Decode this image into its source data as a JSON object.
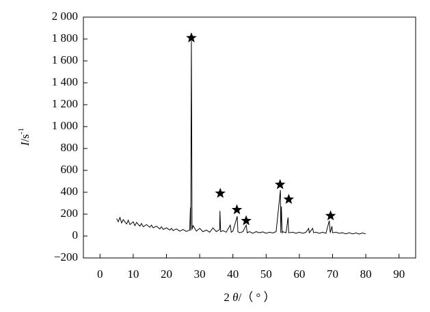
{
  "chart_data": {
    "type": "line",
    "x_label_parts": [
      "2 ",
      "θ",
      "/（ ° ）"
    ],
    "y_label_parts": [
      "I",
      "/s",
      "-1"
    ],
    "xlim": [
      -5,
      95
    ],
    "xticks": [
      0,
      10,
      20,
      30,
      40,
      50,
      60,
      70,
      80,
      90
    ],
    "ylim": [
      -200,
      2000
    ],
    "yticks": [
      {
        "value": -200,
        "label": "−200"
      },
      0,
      200,
      400,
      600,
      800,
      {
        "value": 1000,
        "label": "1 000"
      },
      {
        "value": 1200,
        "label": "1 200"
      },
      {
        "value": 1400,
        "label": "1 400"
      },
      {
        "value": 1600,
        "label": "1 600"
      },
      {
        "value": 1800,
        "label": "1 800"
      },
      {
        "value": 2000,
        "label": "2 000"
      }
    ],
    "series": [
      {
        "color": "#000000",
        "x": [
          5,
          5.5,
          6,
          6.5,
          7,
          8,
          8.5,
          9,
          10,
          10.5,
          11,
          12,
          12.5,
          13,
          14,
          15,
          15.5,
          16,
          17,
          18,
          18.5,
          19,
          20,
          21,
          21.5,
          22,
          23,
          24,
          25,
          26,
          27,
          27.2,
          27.3,
          27.5,
          27.7,
          28,
          29,
          30,
          31,
          32,
          33,
          34,
          35,
          36,
          36.1,
          36.3,
          37,
          38,
          39.2,
          39.5,
          40,
          41.3,
          41.5,
          42,
          43,
          44,
          44.3,
          45,
          46,
          47,
          48,
          49,
          50,
          51,
          52,
          53,
          54.3,
          54.4,
          54.6,
          54.8,
          55,
          56,
          56.6,
          56.8,
          58,
          59,
          60,
          61,
          62,
          62.8,
          63,
          64,
          64.3,
          65,
          66,
          67,
          68,
          69,
          69.3,
          69.8,
          70,
          71,
          72,
          73,
          74,
          75,
          76,
          77,
          78,
          79,
          80
        ],
        "values": [
          160,
          130,
          170,
          120,
          150,
          110,
          145,
          105,
          130,
          95,
          125,
          90,
          115,
          85,
          105,
          80,
          100,
          75,
          90,
          65,
          85,
          60,
          75,
          55,
          70,
          50,
          65,
          45,
          60,
          42,
          55,
          260,
          50,
          1800,
          60,
          95,
          45,
          70,
          40,
          55,
          35,
          75,
          40,
          60,
          230,
          40,
          50,
          35,
          100,
          35,
          45,
          180,
          40,
          30,
          40,
          100,
          30,
          40,
          25,
          40,
          30,
          38,
          25,
          35,
          28,
          40,
          420,
          30,
          270,
          30,
          40,
          30,
          170,
          30,
          35,
          25,
          35,
          25,
          35,
          70,
          30,
          70,
          30,
          35,
          25,
          35,
          25,
          140,
          30,
          90,
          30,
          35,
          25,
          30,
          20,
          30,
          20,
          28,
          18,
          28,
          20
        ]
      },
      {
        "type": "scatter",
        "marker": "star",
        "color": "#000000",
        "x": [
          27.5,
          36.2,
          41.2,
          44,
          54.2,
          56.8,
          69.4
        ],
        "values": [
          1810,
          390,
          240,
          140,
          470,
          335,
          185
        ]
      }
    ]
  }
}
